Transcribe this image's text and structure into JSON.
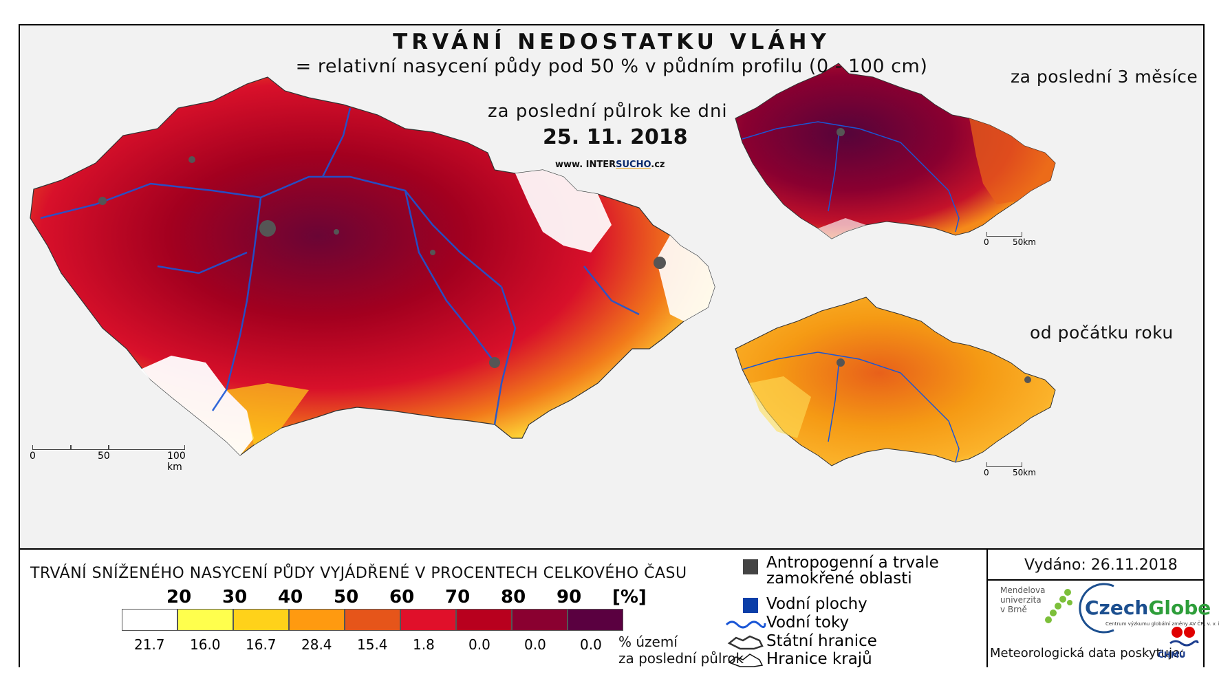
{
  "header": {
    "title": "TRVÁNÍ NEDOSTATKU VLÁHY",
    "subtitle": "= relativní nasycení půdy pod 50 % v půdním profilu (0 - 100 cm)",
    "period_label": "za poslední půlrok ke dni",
    "date": "25. 11. 2018",
    "website_prefix": "www. INTER",
    "website_brand": "SUCHO",
    "website_suffix": ".cz"
  },
  "small_maps": {
    "last3_label": "za poslední 3 měsíce",
    "ytd_label": "od počátku roku"
  },
  "scales": {
    "main": {
      "zero": "0",
      "mid": "50",
      "end": "100 km"
    },
    "small": {
      "zero": "0",
      "end": "50km"
    }
  },
  "legend": {
    "title": "TRVÁNÍ SNÍŽENÉHO NASYCENÍ PŮDY VYJÁDŘENÉ V PROCENTECH CELKOVÉHO ČASU",
    "thresholds": [
      "20",
      "30",
      "40",
      "50",
      "60",
      "70",
      "80",
      "90",
      "[%]"
    ],
    "classes": [
      {
        "color": "#ffffff",
        "share": "21.7"
      },
      {
        "color": "#ffff4d",
        "share": "16.0"
      },
      {
        "color": "#ffd21a",
        "share": "16.7"
      },
      {
        "color": "#ff9a10",
        "share": "28.4"
      },
      {
        "color": "#e6551a",
        "share": "15.4"
      },
      {
        "color": "#e0102a",
        "share": "1.8"
      },
      {
        "color": "#b8001e",
        "share": "0.0"
      },
      {
        "color": "#8a0030",
        "share": "0.0"
      },
      {
        "color": "#5a0040",
        "share": "0.0"
      }
    ],
    "share_caption_1": "% území",
    "share_caption_2": "za poslední půlrok",
    "symbols": {
      "anthropogenic_1": "Antropogenní a trvale",
      "anthropogenic_2": "zamokřené oblasti",
      "water_bodies": "Vodní plochy",
      "rivers": "Vodní toky",
      "state_border": "Státní hranice",
      "regions": "Hranice krajů"
    }
  },
  "info": {
    "issued": "Vydáno: 26.11.2018",
    "mendel": "Mendelova univerzita v Brně",
    "czechglobe_1": "Czech",
    "czechglobe_2": "Globe",
    "czechglobe_sub": "Centrum výzkumu globální změny AV ČR, v. v. i.",
    "meteo": "Meteorologická data poskytuje:",
    "chmu": "ČHMÚ"
  },
  "colors": {
    "river": "#1a56d6",
    "urban": "#555555",
    "map_main_fill": "#c0102e",
    "map_3m_fill": "#8a0a3a",
    "map_ytd_fill": "#f3a018"
  }
}
